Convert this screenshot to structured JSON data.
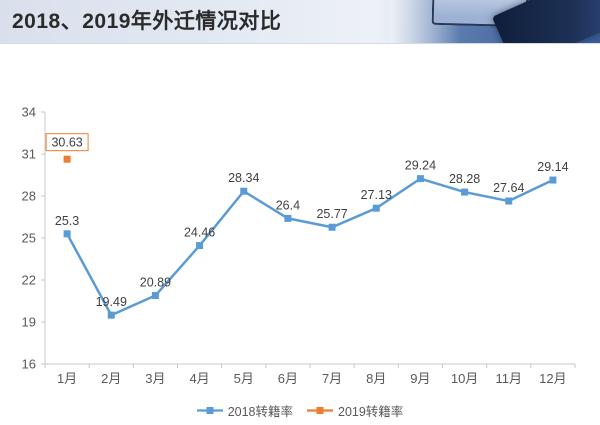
{
  "header": {
    "title": "2018、2019年外迁情况对比"
  },
  "chart_data": {
    "type": "line",
    "title": "2018、2019年外迁情况对比",
    "categories": [
      "1月",
      "2月",
      "3月",
      "4月",
      "5月",
      "6月",
      "7月",
      "8月",
      "9月",
      "10月",
      "11月",
      "12月"
    ],
    "series": [
      {
        "name": "2018转籍率",
        "color": "#5B9BD5",
        "marker": "square",
        "values": [
          25.3,
          19.49,
          20.89,
          24.46,
          28.34,
          26.4,
          25.77,
          27.13,
          29.24,
          28.28,
          27.64,
          29.14
        ],
        "label_boxed": false
      },
      {
        "name": "2019转籍率",
        "color": "#ED7D31",
        "marker": "square",
        "values": [
          30.63,
          null,
          null,
          null,
          null,
          null,
          null,
          null,
          null,
          null,
          null,
          null
        ],
        "label_boxed": true
      }
    ],
    "ylim": [
      16,
      34
    ],
    "yticks": [
      16,
      19,
      22,
      25,
      28,
      31,
      34
    ],
    "grid": false,
    "legend_position": "bottom",
    "axis_color": "#c9c9c9",
    "tick_label_color": "#595959",
    "data_label_color": "#404040"
  }
}
